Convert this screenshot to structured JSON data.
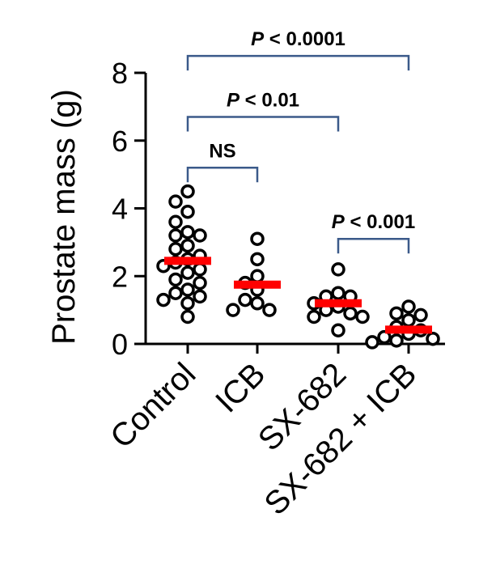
{
  "chart_data": {
    "type": "scatter",
    "ylabel": "Prostate mass (g)",
    "ylim": [
      0,
      8
    ],
    "yticks": [
      0,
      2,
      4,
      6,
      8
    ],
    "categories": [
      "Control",
      "ICB",
      "SX-682",
      "SX-682 + ICB"
    ],
    "colors": {
      "mean": "#ff0000",
      "bracket": "#3b5a8a",
      "points": "#000000"
    },
    "groups": [
      {
        "category": "Control",
        "mean": 2.45,
        "points": [
          4.5,
          4.2,
          3.9,
          3.6,
          3.3,
          3.2,
          3.2,
          2.9,
          2.8,
          2.6,
          2.5,
          2.4,
          2.3,
          2.2,
          2.1,
          1.9,
          1.8,
          1.6,
          1.5,
          1.4,
          1.3,
          1.2,
          0.8
        ]
      },
      {
        "category": "ICB",
        "mean": 1.75,
        "points": [
          3.1,
          2.5,
          2.0,
          1.8,
          1.6,
          1.3,
          1.2,
          1.0,
          1.0
        ]
      },
      {
        "category": "SX-682",
        "mean": 1.2,
        "points": [
          2.2,
          1.5,
          1.4,
          1.4,
          1.2,
          1.1,
          1.0,
          0.9,
          0.8,
          0.8,
          0.4
        ]
      },
      {
        "category": "SX-682 + ICB",
        "mean": 0.42,
        "points": [
          1.1,
          0.9,
          0.85,
          0.7,
          0.5,
          0.4,
          0.3,
          0.2,
          0.15,
          0.1,
          0.05
        ]
      }
    ],
    "comparisons": [
      {
        "from": 0,
        "to": 3,
        "label_prefix": "P",
        "label_rest": " < 0.0001",
        "y": 8.5
      },
      {
        "from": 0,
        "to": 2,
        "label_prefix": "P",
        "label_rest": " < 0.01",
        "y": 6.7
      },
      {
        "from": 0,
        "to": 1,
        "label_prefix": "",
        "label_rest": "NS",
        "y": 5.2
      },
      {
        "from": 2,
        "to": 3,
        "label_prefix": "P",
        "label_rest": " < 0.001",
        "y": 3.1
      }
    ]
  }
}
